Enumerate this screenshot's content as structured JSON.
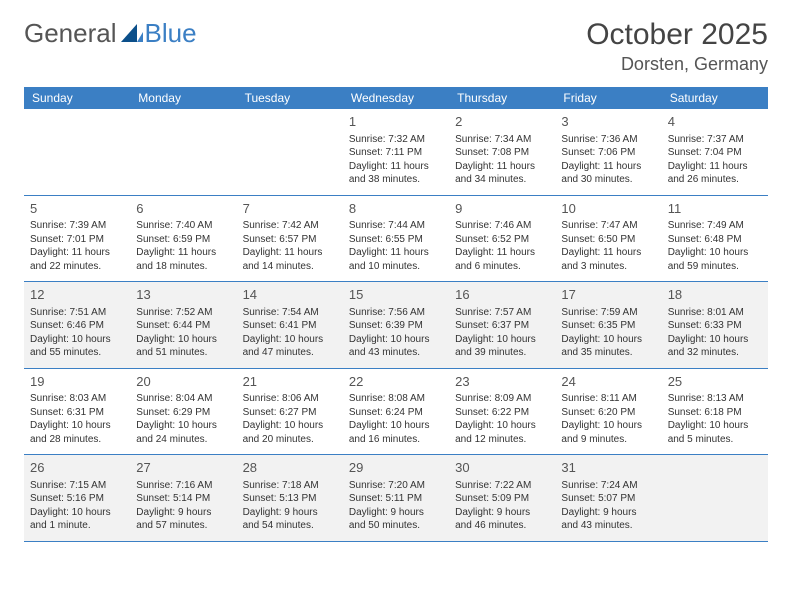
{
  "logo": {
    "text1": "General",
    "text2": "Blue"
  },
  "title": "October 2025",
  "location": "Dorsten, Germany",
  "colors": {
    "header_bg": "#3b7fc4",
    "header_text": "#ffffff",
    "shaded_row": "#f2f2f2",
    "border": "#3b7fc4",
    "text": "#333333"
  },
  "weekdays": [
    "Sunday",
    "Monday",
    "Tuesday",
    "Wednesday",
    "Thursday",
    "Friday",
    "Saturday"
  ],
  "weeks": [
    {
      "shaded": false,
      "days": [
        null,
        null,
        null,
        {
          "n": "1",
          "sunrise": "Sunrise: 7:32 AM",
          "sunset": "Sunset: 7:11 PM",
          "day1": "Daylight: 11 hours",
          "day2": "and 38 minutes."
        },
        {
          "n": "2",
          "sunrise": "Sunrise: 7:34 AM",
          "sunset": "Sunset: 7:08 PM",
          "day1": "Daylight: 11 hours",
          "day2": "and 34 minutes."
        },
        {
          "n": "3",
          "sunrise": "Sunrise: 7:36 AM",
          "sunset": "Sunset: 7:06 PM",
          "day1": "Daylight: 11 hours",
          "day2": "and 30 minutes."
        },
        {
          "n": "4",
          "sunrise": "Sunrise: 7:37 AM",
          "sunset": "Sunset: 7:04 PM",
          "day1": "Daylight: 11 hours",
          "day2": "and 26 minutes."
        }
      ]
    },
    {
      "shaded": false,
      "days": [
        {
          "n": "5",
          "sunrise": "Sunrise: 7:39 AM",
          "sunset": "Sunset: 7:01 PM",
          "day1": "Daylight: 11 hours",
          "day2": "and 22 minutes."
        },
        {
          "n": "6",
          "sunrise": "Sunrise: 7:40 AM",
          "sunset": "Sunset: 6:59 PM",
          "day1": "Daylight: 11 hours",
          "day2": "and 18 minutes."
        },
        {
          "n": "7",
          "sunrise": "Sunrise: 7:42 AM",
          "sunset": "Sunset: 6:57 PM",
          "day1": "Daylight: 11 hours",
          "day2": "and 14 minutes."
        },
        {
          "n": "8",
          "sunrise": "Sunrise: 7:44 AM",
          "sunset": "Sunset: 6:55 PM",
          "day1": "Daylight: 11 hours",
          "day2": "and 10 minutes."
        },
        {
          "n": "9",
          "sunrise": "Sunrise: 7:46 AM",
          "sunset": "Sunset: 6:52 PM",
          "day1": "Daylight: 11 hours",
          "day2": "and 6 minutes."
        },
        {
          "n": "10",
          "sunrise": "Sunrise: 7:47 AM",
          "sunset": "Sunset: 6:50 PM",
          "day1": "Daylight: 11 hours",
          "day2": "and 3 minutes."
        },
        {
          "n": "11",
          "sunrise": "Sunrise: 7:49 AM",
          "sunset": "Sunset: 6:48 PM",
          "day1": "Daylight: 10 hours",
          "day2": "and 59 minutes."
        }
      ]
    },
    {
      "shaded": true,
      "days": [
        {
          "n": "12",
          "sunrise": "Sunrise: 7:51 AM",
          "sunset": "Sunset: 6:46 PM",
          "day1": "Daylight: 10 hours",
          "day2": "and 55 minutes."
        },
        {
          "n": "13",
          "sunrise": "Sunrise: 7:52 AM",
          "sunset": "Sunset: 6:44 PM",
          "day1": "Daylight: 10 hours",
          "day2": "and 51 minutes."
        },
        {
          "n": "14",
          "sunrise": "Sunrise: 7:54 AM",
          "sunset": "Sunset: 6:41 PM",
          "day1": "Daylight: 10 hours",
          "day2": "and 47 minutes."
        },
        {
          "n": "15",
          "sunrise": "Sunrise: 7:56 AM",
          "sunset": "Sunset: 6:39 PM",
          "day1": "Daylight: 10 hours",
          "day2": "and 43 minutes."
        },
        {
          "n": "16",
          "sunrise": "Sunrise: 7:57 AM",
          "sunset": "Sunset: 6:37 PM",
          "day1": "Daylight: 10 hours",
          "day2": "and 39 minutes."
        },
        {
          "n": "17",
          "sunrise": "Sunrise: 7:59 AM",
          "sunset": "Sunset: 6:35 PM",
          "day1": "Daylight: 10 hours",
          "day2": "and 35 minutes."
        },
        {
          "n": "18",
          "sunrise": "Sunrise: 8:01 AM",
          "sunset": "Sunset: 6:33 PM",
          "day1": "Daylight: 10 hours",
          "day2": "and 32 minutes."
        }
      ]
    },
    {
      "shaded": false,
      "days": [
        {
          "n": "19",
          "sunrise": "Sunrise: 8:03 AM",
          "sunset": "Sunset: 6:31 PM",
          "day1": "Daylight: 10 hours",
          "day2": "and 28 minutes."
        },
        {
          "n": "20",
          "sunrise": "Sunrise: 8:04 AM",
          "sunset": "Sunset: 6:29 PM",
          "day1": "Daylight: 10 hours",
          "day2": "and 24 minutes."
        },
        {
          "n": "21",
          "sunrise": "Sunrise: 8:06 AM",
          "sunset": "Sunset: 6:27 PM",
          "day1": "Daylight: 10 hours",
          "day2": "and 20 minutes."
        },
        {
          "n": "22",
          "sunrise": "Sunrise: 8:08 AM",
          "sunset": "Sunset: 6:24 PM",
          "day1": "Daylight: 10 hours",
          "day2": "and 16 minutes."
        },
        {
          "n": "23",
          "sunrise": "Sunrise: 8:09 AM",
          "sunset": "Sunset: 6:22 PM",
          "day1": "Daylight: 10 hours",
          "day2": "and 12 minutes."
        },
        {
          "n": "24",
          "sunrise": "Sunrise: 8:11 AM",
          "sunset": "Sunset: 6:20 PM",
          "day1": "Daylight: 10 hours",
          "day2": "and 9 minutes."
        },
        {
          "n": "25",
          "sunrise": "Sunrise: 8:13 AM",
          "sunset": "Sunset: 6:18 PM",
          "day1": "Daylight: 10 hours",
          "day2": "and 5 minutes."
        }
      ]
    },
    {
      "shaded": true,
      "days": [
        {
          "n": "26",
          "sunrise": "Sunrise: 7:15 AM",
          "sunset": "Sunset: 5:16 PM",
          "day1": "Daylight: 10 hours",
          "day2": "and 1 minute."
        },
        {
          "n": "27",
          "sunrise": "Sunrise: 7:16 AM",
          "sunset": "Sunset: 5:14 PM",
          "day1": "Daylight: 9 hours",
          "day2": "and 57 minutes."
        },
        {
          "n": "28",
          "sunrise": "Sunrise: 7:18 AM",
          "sunset": "Sunset: 5:13 PM",
          "day1": "Daylight: 9 hours",
          "day2": "and 54 minutes."
        },
        {
          "n": "29",
          "sunrise": "Sunrise: 7:20 AM",
          "sunset": "Sunset: 5:11 PM",
          "day1": "Daylight: 9 hours",
          "day2": "and 50 minutes."
        },
        {
          "n": "30",
          "sunrise": "Sunrise: 7:22 AM",
          "sunset": "Sunset: 5:09 PM",
          "day1": "Daylight: 9 hours",
          "day2": "and 46 minutes."
        },
        {
          "n": "31",
          "sunrise": "Sunrise: 7:24 AM",
          "sunset": "Sunset: 5:07 PM",
          "day1": "Daylight: 9 hours",
          "day2": "and 43 minutes."
        },
        null
      ]
    }
  ]
}
